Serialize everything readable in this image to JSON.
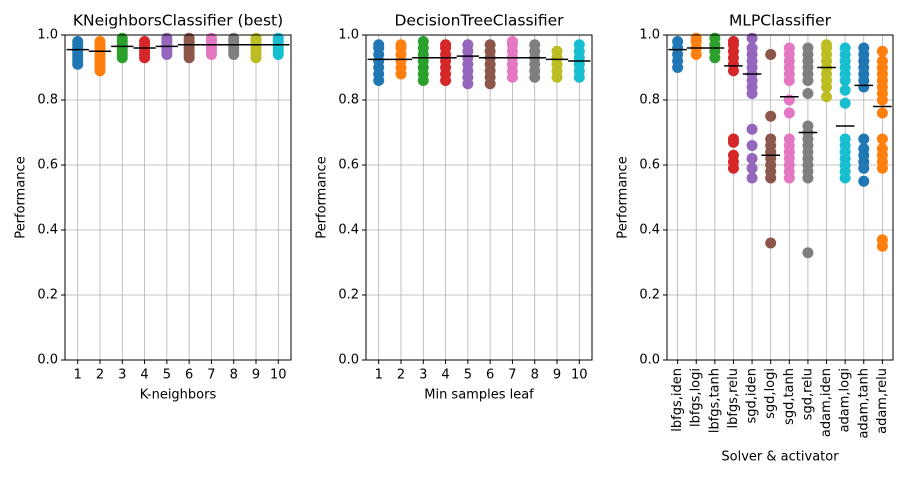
{
  "chart_data": [
    {
      "type": "strip",
      "title": "KNeighborsClassifier (best)",
      "xlabel": "K-neighbors",
      "ylabel": "Performance",
      "categories": [
        "1",
        "2",
        "3",
        "4",
        "5",
        "6",
        "7",
        "8",
        "9",
        "10"
      ],
      "colors": [
        "#1f77b4",
        "#ff7f0e",
        "#2ca02c",
        "#d62728",
        "#9467bd",
        "#8c564b",
        "#e377c2",
        "#7f7f7f",
        "#bcbd22",
        "#17becf"
      ],
      "values": [
        [
          0.91,
          0.92,
          0.93,
          0.94,
          0.95,
          0.96,
          0.97,
          0.98
        ],
        [
          0.89,
          0.9,
          0.91,
          0.92,
          0.93,
          0.94,
          0.95,
          0.96,
          0.97,
          0.98
        ],
        [
          0.93,
          0.94,
          0.95,
          0.96,
          0.97,
          0.98,
          0.99
        ],
        [
          0.93,
          0.94,
          0.95,
          0.96,
          0.97,
          0.98
        ],
        [
          0.94,
          0.95,
          0.96,
          0.97,
          0.98,
          0.99
        ],
        [
          0.93,
          0.94,
          0.95,
          0.96,
          0.97,
          0.98,
          0.99
        ],
        [
          0.94,
          0.95,
          0.96,
          0.97,
          0.98,
          0.99
        ],
        [
          0.94,
          0.95,
          0.96,
          0.97,
          0.98,
          0.99
        ],
        [
          0.93,
          0.94,
          0.95,
          0.96,
          0.97,
          0.98,
          0.99
        ],
        [
          0.94,
          0.95,
          0.96,
          0.97,
          0.98,
          0.99
        ]
      ],
      "means": [
        0.955,
        0.95,
        0.965,
        0.96,
        0.965,
        0.97,
        0.97,
        0.97,
        0.97,
        0.97
      ],
      "ylim": [
        0,
        1
      ],
      "yticks": [
        {
          "value": 0,
          "label": "0.0"
        },
        {
          "value": 0.2,
          "label": "0.2"
        },
        {
          "value": 0.4,
          "label": "0.4"
        },
        {
          "value": 0.6,
          "label": "0.6"
        },
        {
          "value": 0.8,
          "label": "0.8"
        },
        {
          "value": 1,
          "label": "1.0"
        }
      ],
      "grid": true
    },
    {
      "type": "strip",
      "title": "DecisionTreeClassifier",
      "xlabel": "Min samples leaf",
      "ylabel": "Performance",
      "categories": [
        "1",
        "2",
        "3",
        "4",
        "5",
        "6",
        "7",
        "8",
        "9",
        "10"
      ],
      "colors": [
        "#1f77b4",
        "#ff7f0e",
        "#2ca02c",
        "#d62728",
        "#9467bd",
        "#8c564b",
        "#e377c2",
        "#7f7f7f",
        "#bcbd22",
        "#17becf"
      ],
      "values": [
        [
          0.86,
          0.88,
          0.9,
          0.92,
          0.94,
          0.96,
          0.97
        ],
        [
          0.88,
          0.9,
          0.92,
          0.94,
          0.96,
          0.97
        ],
        [
          0.86,
          0.88,
          0.9,
          0.92,
          0.94,
          0.96,
          0.98
        ],
        [
          0.86,
          0.88,
          0.9,
          0.92,
          0.94,
          0.96,
          0.97
        ],
        [
          0.85,
          0.87,
          0.89,
          0.91,
          0.93,
          0.95,
          0.97
        ],
        [
          0.85,
          0.87,
          0.89,
          0.91,
          0.93,
          0.95,
          0.97
        ],
        [
          0.87,
          0.89,
          0.91,
          0.93,
          0.95,
          0.97,
          0.98
        ],
        [
          0.87,
          0.89,
          0.91,
          0.93,
          0.95,
          0.97
        ],
        [
          0.87,
          0.89,
          0.91,
          0.93,
          0.95
        ],
        [
          0.87,
          0.89,
          0.91,
          0.93,
          0.95,
          0.97
        ]
      ],
      "means": [
        0.925,
        0.925,
        0.93,
        0.93,
        0.935,
        0.93,
        0.93,
        0.93,
        0.925,
        0.92
      ],
      "ylim": [
        0,
        1
      ],
      "yticks": [
        {
          "value": 0,
          "label": "0.0"
        },
        {
          "value": 0.2,
          "label": "0.2"
        },
        {
          "value": 0.4,
          "label": "0.4"
        },
        {
          "value": 0.6,
          "label": "0.6"
        },
        {
          "value": 0.8,
          "label": "0.8"
        },
        {
          "value": 1,
          "label": "1.0"
        }
      ],
      "grid": true
    },
    {
      "type": "strip",
      "title": "MLPClassifier",
      "xlabel": "Solver & activator",
      "ylabel": "Performance",
      "categories": [
        "lbfgs,iden",
        "lbfgs,logi",
        "lbfgs,tanh",
        "lbfgs,relu",
        "sgd,iden",
        "sgd,logi",
        "sgd,tanh",
        "sgd,relu",
        "adam,iden",
        "adam,logi",
        "adam,tanh",
        "adam,relu"
      ],
      "colors": [
        "#1f77b4",
        "#ff7f0e",
        "#2ca02c",
        "#d62728",
        "#9467bd",
        "#8c564b",
        "#e377c2",
        "#7f7f7f",
        "#bcbd22",
        "#17becf",
        "#1f77b4",
        "#ff7f0e"
      ],
      "values": [
        [
          0.9,
          0.92,
          0.94,
          0.96,
          0.98
        ],
        [
          0.94,
          0.96,
          0.98,
          0.99
        ],
        [
          0.93,
          0.95,
          0.97,
          0.99
        ],
        [
          0.59,
          0.61,
          0.63,
          0.67,
          0.68,
          0.89,
          0.91,
          0.93,
          0.95,
          0.97,
          0.98
        ],
        [
          0.56,
          0.59,
          0.62,
          0.66,
          0.71,
          0.82,
          0.84,
          0.86,
          0.88,
          0.9,
          0.92,
          0.94,
          0.96,
          0.99
        ],
        [
          0.36,
          0.56,
          0.58,
          0.6,
          0.62,
          0.64,
          0.66,
          0.68,
          0.75,
          0.94
        ],
        [
          0.56,
          0.58,
          0.6,
          0.62,
          0.64,
          0.66,
          0.68,
          0.76,
          0.8,
          0.86,
          0.88,
          0.9,
          0.92,
          0.94,
          0.96
        ],
        [
          0.33,
          0.56,
          0.58,
          0.6,
          0.62,
          0.64,
          0.66,
          0.68,
          0.7,
          0.72,
          0.82,
          0.86,
          0.88,
          0.9,
          0.92,
          0.94,
          0.96
        ],
        [
          0.81,
          0.84,
          0.86,
          0.88,
          0.9,
          0.92,
          0.94,
          0.96,
          0.97
        ],
        [
          0.56,
          0.58,
          0.6,
          0.62,
          0.64,
          0.66,
          0.68,
          0.79,
          0.83,
          0.86,
          0.88,
          0.9,
          0.92,
          0.94,
          0.96
        ],
        [
          0.55,
          0.59,
          0.61,
          0.63,
          0.65,
          0.68,
          0.84,
          0.86,
          0.88,
          0.9,
          0.92,
          0.94,
          0.96
        ],
        [
          0.35,
          0.37,
          0.59,
          0.61,
          0.63,
          0.65,
          0.68,
          0.76,
          0.8,
          0.82,
          0.84,
          0.86,
          0.88,
          0.9,
          0.92,
          0.95
        ]
      ],
      "means": [
        0.955,
        0.96,
        0.96,
        0.905,
        0.88,
        0.63,
        0.81,
        0.7,
        0.9,
        0.72,
        0.845,
        0.78
      ],
      "ylim": [
        0,
        1
      ],
      "yticks": [
        {
          "value": 0,
          "label": "0.0"
        },
        {
          "value": 0.2,
          "label": "0.2"
        },
        {
          "value": 0.4,
          "label": "0.4"
        },
        {
          "value": 0.6,
          "label": "0.6"
        },
        {
          "value": 0.8,
          "label": "0.8"
        },
        {
          "value": 1,
          "label": "1.0"
        }
      ],
      "grid": true
    }
  ]
}
